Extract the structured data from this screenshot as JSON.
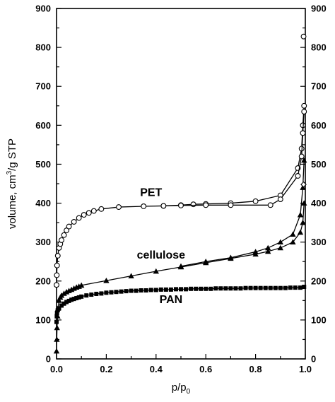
{
  "chart_data": {
    "type": "line",
    "title": "",
    "xlabel_main": "p/p",
    "xlabel_sub": "0",
    "ylabel_main": "volume, cm",
    "ylabel_sup": "3",
    "ylabel_tail": "/g STP",
    "xlim": [
      0.0,
      1.0
    ],
    "ylim": [
      0,
      900
    ],
    "x_ticks": [
      0.0,
      0.2,
      0.4,
      0.6,
      0.8,
      1.0
    ],
    "x_tick_labels": [
      "0.0",
      "0.2",
      "0.4",
      "0.6",
      "0.8",
      "1.0"
    ],
    "y_ticks": [
      0,
      100,
      200,
      300,
      400,
      500,
      600,
      700,
      800,
      900
    ],
    "y_tick_labels": [
      "0",
      "100",
      "200",
      "300",
      "400",
      "500",
      "600",
      "700",
      "800",
      "900"
    ],
    "right_axis_mirror": true,
    "grid": false,
    "series": [
      {
        "name": "PET",
        "marker": "open-circle",
        "label_at": [
          0.38,
          418
        ],
        "adsorption": {
          "x": [
            0.0,
            0.001,
            0.002,
            0.005,
            0.01,
            0.015,
            0.02,
            0.03,
            0.04,
            0.05,
            0.07,
            0.09,
            0.11,
            0.13,
            0.15,
            0.18,
            0.25,
            0.35,
            0.43,
            0.5,
            0.55,
            0.6,
            0.7,
            0.8,
            0.9,
            0.97,
            0.985,
            0.99,
            0.995
          ],
          "y": [
            190,
            215,
            240,
            265,
            285,
            295,
            305,
            318,
            330,
            340,
            352,
            362,
            370,
            375,
            380,
            385,
            390,
            392,
            393,
            395,
            397,
            398,
            400,
            405,
            420,
            490,
            540,
            600,
            650
          ]
        },
        "desorption": {
          "x": [
            0.995,
            0.99,
            0.985,
            0.97,
            0.9,
            0.86,
            0.7,
            0.6,
            0.5,
            0.43
          ],
          "y": [
            635,
            580,
            520,
            470,
            410,
            395,
            395,
            395,
            394,
            393
          ]
        },
        "extra_points": {
          "x": [
            0.993
          ],
          "y": [
            828
          ]
        }
      },
      {
        "name": "cellulose",
        "marker": "filled-triangle",
        "label_at": [
          0.42,
          258
        ],
        "adsorption": {
          "x": [
            0.0,
            0.001,
            0.002,
            0.004,
            0.006,
            0.01,
            0.015,
            0.02,
            0.03,
            0.04,
            0.05,
            0.06,
            0.07,
            0.08,
            0.09,
            0.1,
            0.2,
            0.3,
            0.4,
            0.5,
            0.6,
            0.7,
            0.8,
            0.85,
            0.9,
            0.95,
            0.98,
            0.99,
            0.995
          ],
          "y": [
            20,
            50,
            80,
            110,
            130,
            150,
            158,
            163,
            168,
            172,
            175,
            178,
            181,
            184,
            186,
            189,
            201,
            213,
            225,
            236,
            247,
            258,
            269,
            276,
            285,
            300,
            325,
            350,
            400
          ]
        },
        "desorption": {
          "x": [
            0.995,
            0.99,
            0.98,
            0.95,
            0.9,
            0.85,
            0.8,
            0.7,
            0.6,
            0.5
          ],
          "y": [
            510,
            440,
            370,
            320,
            300,
            285,
            275,
            260,
            250,
            238
          ]
        },
        "extra_points": {
          "x": [
            0.993
          ],
          "y": [
            448
          ]
        }
      },
      {
        "name": "PAN",
        "marker": "filled-square",
        "label_at": [
          0.46,
          143
        ],
        "adsorption": {
          "x": [
            0.0,
            0.001,
            0.002,
            0.005,
            0.01,
            0.02,
            0.03,
            0.04,
            0.05,
            0.06,
            0.07,
            0.08,
            0.09,
            0.1,
            0.12,
            0.14,
            0.16,
            0.18,
            0.2,
            0.22,
            0.24,
            0.26,
            0.28,
            0.3,
            0.32,
            0.34,
            0.36,
            0.38,
            0.4,
            0.42,
            0.44,
            0.46,
            0.48,
            0.5,
            0.52,
            0.54,
            0.56,
            0.58,
            0.6,
            0.62,
            0.64,
            0.66,
            0.68,
            0.7,
            0.72,
            0.74,
            0.76,
            0.78,
            0.8,
            0.82,
            0.84,
            0.86,
            0.88,
            0.9,
            0.92,
            0.94,
            0.96,
            0.98,
            0.995
          ],
          "y": [
            95,
            110,
            118,
            125,
            130,
            137,
            142,
            146,
            149,
            152,
            154,
            156,
            158,
            160,
            163,
            165,
            167,
            168,
            170,
            171,
            172,
            173,
            174,
            175,
            175,
            176,
            176,
            177,
            177,
            178,
            178,
            178,
            179,
            179,
            179,
            180,
            180,
            180,
            180,
            180,
            181,
            181,
            181,
            181,
            181,
            181,
            182,
            182,
            182,
            182,
            182,
            182,
            182,
            182,
            182,
            183,
            183,
            183,
            185
          ]
        }
      }
    ]
  }
}
